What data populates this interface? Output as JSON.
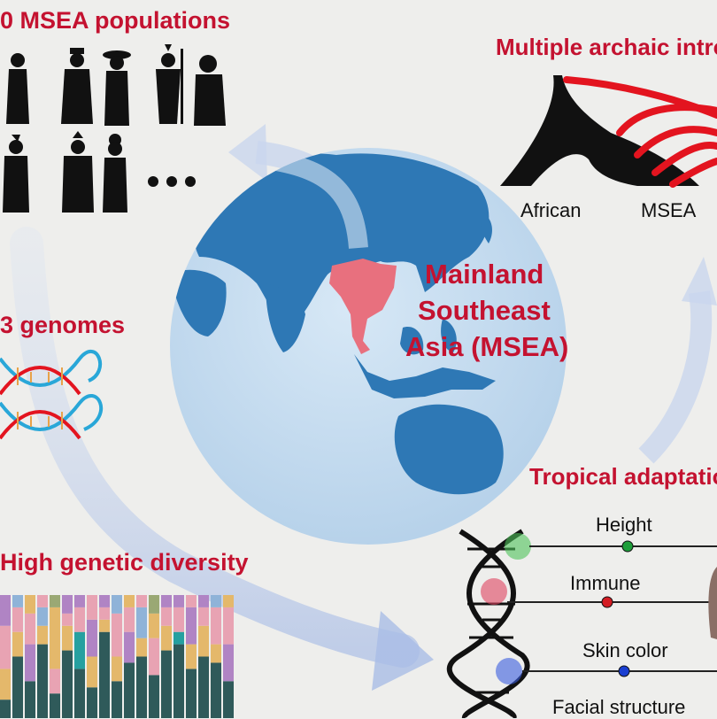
{
  "titles": {
    "populations": "0 MSEA populations",
    "genomes": "3 genomes",
    "diversity": "High genetic diversity",
    "archaic": "Multiple archaic introg",
    "tropical": "Tropical adaptatio"
  },
  "globe_label": [
    "Mainland",
    "Southeast",
    "Asia (MSEA)"
  ],
  "tree_labels": {
    "left": "African",
    "right": "MSEA"
  },
  "traits": [
    "Height",
    "Immune",
    "Skin color",
    "Facial structure"
  ],
  "ellipsis": "•••",
  "colors": {
    "title_red": "#c41230",
    "ocean": "#c9dff0",
    "land": "#2e78b5",
    "msea_region": "#e8707e",
    "archaic_red": "#e3141f",
    "height_dot": "#1e9e3a",
    "immune_dot": "#d41d24",
    "skin_dot": "#1a3fd1"
  },
  "bar_colors": [
    "#2f5a5a",
    "#e4b86b",
    "#e8a3b3",
    "#b084c4",
    "#8fb3d8",
    "#9aa874",
    "#d98a5a",
    "#26a0a0"
  ]
}
